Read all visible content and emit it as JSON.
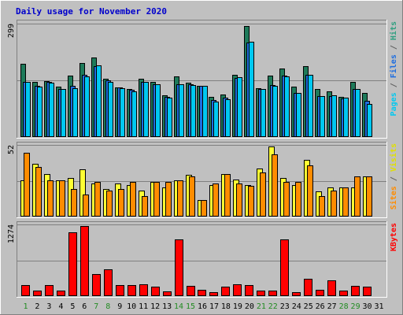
{
  "chart_data": {
    "type": "bar",
    "title": "Daily usage for November 2020",
    "categories": [
      "1",
      "2",
      "3",
      "4",
      "5",
      "6",
      "7",
      "8",
      "9",
      "10",
      "11",
      "12",
      "13",
      "14",
      "15",
      "16",
      "17",
      "18",
      "19",
      "20",
      "21",
      "22",
      "23",
      "24",
      "25",
      "26",
      "27",
      "28",
      "29",
      "30",
      "31"
    ],
    "weekend_days": [
      "1",
      "7",
      "8",
      "14",
      "15",
      "21",
      "22",
      "28",
      "29"
    ],
    "panels": [
      {
        "id": "hits-files-pages",
        "ymax_label": "299",
        "ymax": 299,
        "right_label_parts": [
          {
            "text": "Pages",
            "color": "#00c8f0"
          },
          {
            "text": " / ",
            "color": "#606060"
          },
          {
            "text": "Files",
            "color": "#1e6ee0"
          },
          {
            "text": " / ",
            "color": "#606060"
          },
          {
            "text": "Hits",
            "color": "#2f9f80"
          }
        ],
        "series": [
          {
            "name": "Hits",
            "color": "#1e7a5a",
            "values": [
              194,
              146,
              148,
              132,
              161,
              195,
              209,
              153,
              131,
              127,
              154,
              145,
              111,
              159,
              143,
              135,
              105,
              113,
              163,
              293,
              129,
              162,
              180,
              132,
              186,
              126,
              120,
              106,
              146,
              117,
              0
            ]
          },
          {
            "name": "Files",
            "color": "#1e6ee0",
            "values": [
              146,
              135,
              146,
              127,
              136,
              163,
              186,
              149,
              131,
              124,
              145,
              140,
              106,
              140,
              139,
              134,
              97,
              104,
              156,
              250,
              127,
              138,
              161,
              116,
              165,
              109,
              109,
              101,
              127,
              95,
              0
            ]
          },
          {
            "name": "Pages",
            "color": "#00c8f0",
            "values": [
              146,
              133,
              143,
              127,
              128,
              160,
              189,
              145,
              129,
              120,
              145,
              139,
              104,
              140,
              137,
              134,
              94,
              100,
              157,
              251,
              126,
              136,
              160,
              116,
              163,
              107,
              110,
              103,
              126,
              88,
              0
            ]
          }
        ]
      },
      {
        "id": "sites-visits",
        "ymax_label": "52",
        "ymax": 52,
        "right_label_parts": [
          {
            "text": "Sites",
            "color": "#ff8c00"
          },
          {
            "text": " / ",
            "color": "#606060"
          },
          {
            "text": "Visits",
            "color": "#e0e000"
          }
        ],
        "series": [
          {
            "name": "Visits",
            "color": "#ffff33",
            "values": [
              26,
              38,
              31,
              26,
              28,
              34,
              24,
              20,
              24,
              23,
              19,
              25,
              21,
              26,
              30,
              12,
              23,
              31,
              27,
              23,
              35,
              51,
              28,
              23,
              41,
              18,
              21,
              21,
              21,
              29,
              0
            ]
          },
          {
            "name": "Sites",
            "color": "#ff8c00",
            "values": [
              46,
              36,
              26,
              26,
              20,
              16,
              25,
              19,
              20,
              25,
              15,
              25,
              25,
              26,
              29,
              12,
              24,
              31,
              24,
              22,
              32,
              45,
              25,
              25,
              37,
              15,
              19,
              21,
              29,
              29,
              0
            ]
          }
        ]
      },
      {
        "id": "kbytes",
        "ymax_label": "1274",
        "ymax": 1274,
        "right_label_parts": [
          {
            "text": "KBytes",
            "color": "#ff0000"
          }
        ],
        "series": [
          {
            "name": "KBytes",
            "color": "#ff0000",
            "values": [
              195,
              95,
              200,
              95,
              1134,
              1240,
              398,
              470,
              190,
              190,
              203,
              168,
              90,
              1012,
              178,
              108,
              72,
              165,
              215,
              190,
              92,
              99,
              1001,
              72,
              310,
              116,
              282,
              92,
              175,
              168,
              0
            ]
          }
        ]
      }
    ]
  }
}
